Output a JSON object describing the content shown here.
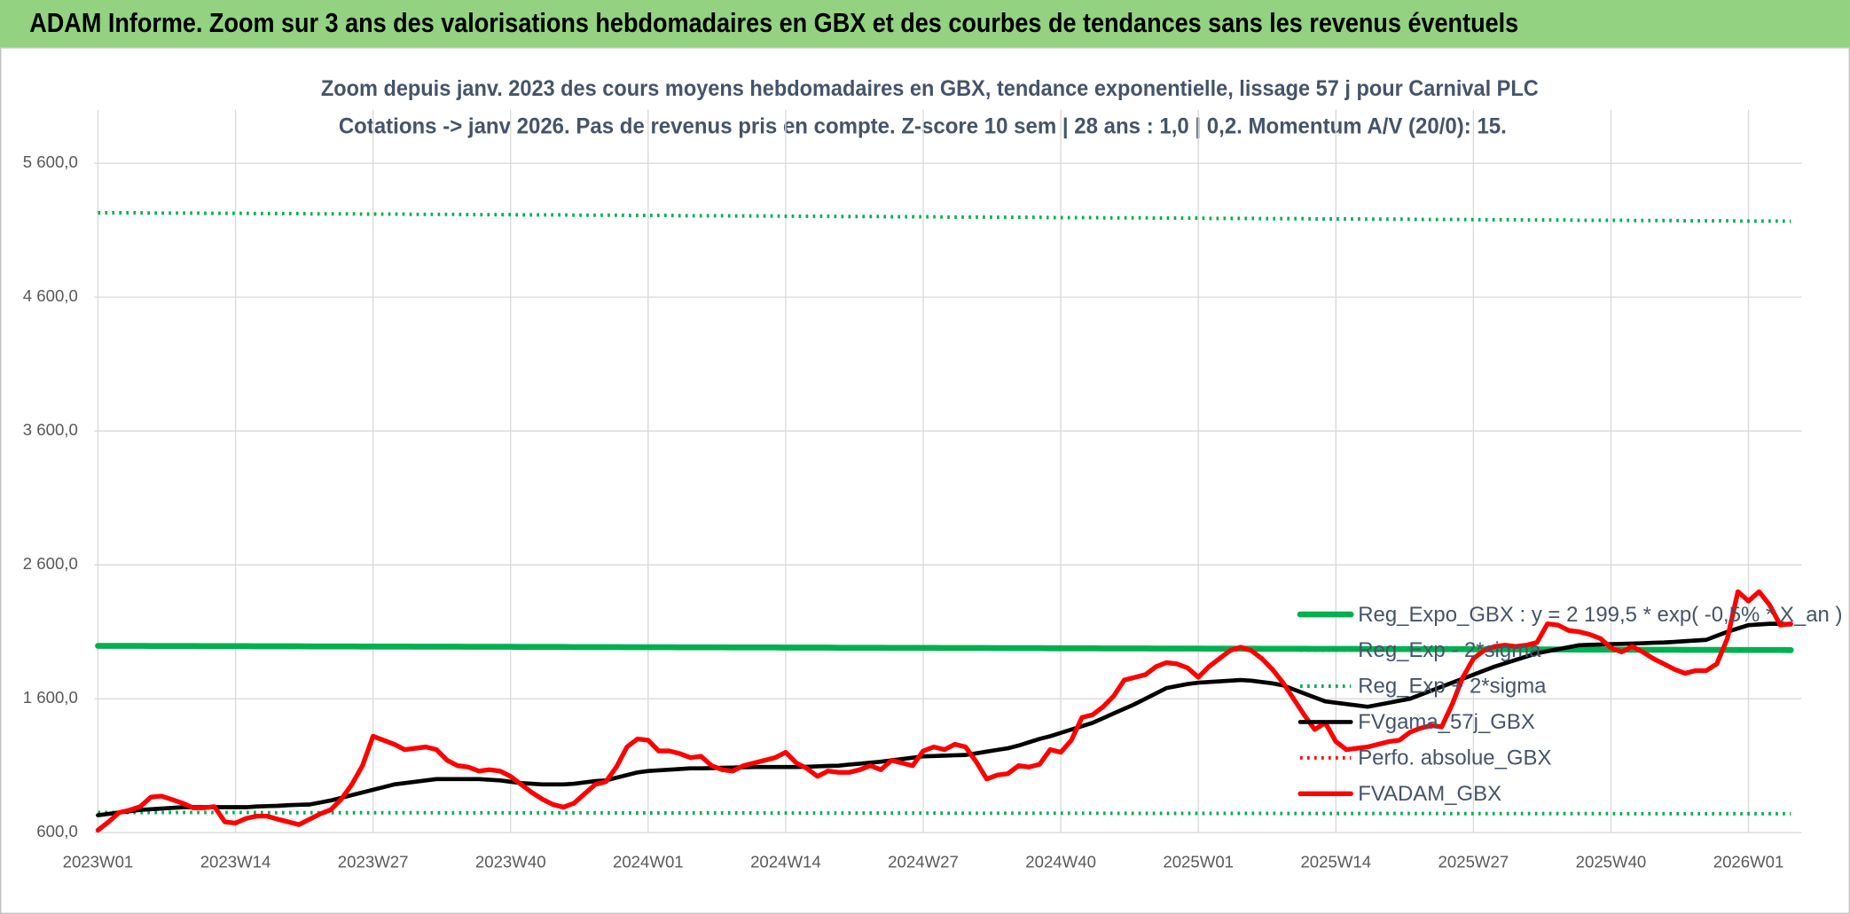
{
  "chart_data": {
    "type": "line",
    "title": "ADAM Informe. Zoom sur 3 ans des valorisations hebdomadaires en GBX et des courbes de tendances sans les revenus éventuels",
    "subtitle": [
      "Zoom depuis janv. 2023 des cours moyens hebdomadaires en GBX, tendance exponentielle, lissage 57 j pour Carnival PLC",
      "Cotations -> janv 2026. Pas de revenus pris en compte. Z-score 10 sem | 28 ans : 1,0 | 0,2. Momentum A/V (20/0): 15."
    ],
    "categories": [
      "2023W01",
      null,
      null,
      null,
      null,
      null,
      null,
      null,
      null,
      null,
      null,
      null,
      null,
      "2023W14",
      null,
      null,
      null,
      null,
      null,
      null,
      null,
      null,
      null,
      null,
      null,
      null,
      "2023W27",
      null,
      null,
      null,
      null,
      null,
      null,
      null,
      null,
      null,
      null,
      null,
      null,
      "2023W40",
      null,
      null,
      null,
      null,
      null,
      null,
      null,
      null,
      null,
      null,
      null,
      null,
      "2024W01",
      null,
      null,
      null,
      null,
      null,
      null,
      null,
      null,
      null,
      null,
      null,
      null,
      "2024W14",
      null,
      null,
      null,
      null,
      null,
      null,
      null,
      null,
      null,
      null,
      null,
      null,
      "2024W27",
      null,
      null,
      null,
      null,
      null,
      null,
      null,
      null,
      null,
      null,
      null,
      null,
      "2024W40",
      null,
      null,
      null,
      null,
      null,
      null,
      null,
      null,
      null,
      null,
      null,
      null,
      "2025W01",
      null,
      null,
      null,
      null,
      null,
      null,
      null,
      null,
      null,
      null,
      null,
      null,
      "2025W14",
      null,
      null,
      null,
      null,
      null,
      null,
      null,
      null,
      null,
      null,
      null,
      null,
      "2025W27",
      null,
      null,
      null,
      null,
      null,
      null,
      null,
      null,
      null,
      null,
      null,
      null,
      "2025W40",
      null,
      null,
      null,
      null,
      null,
      null,
      null,
      null,
      null,
      null,
      null,
      null,
      "2026W01",
      null,
      null,
      null,
      null
    ],
    "ylim": [
      600,
      6000
    ],
    "yticks": [
      {
        "value": 600,
        "label": "600,0"
      },
      {
        "value": 1600,
        "label": "1 600,0"
      },
      {
        "value": 2600,
        "label": "2 600,0"
      },
      {
        "value": 3600,
        "label": "3 600,0"
      },
      {
        "value": 4600,
        "label": "4 600,0"
      },
      {
        "value": 5600,
        "label": "5 600,0"
      }
    ],
    "grid": true,
    "legend": "right",
    "series": [
      {
        "name": "Reg_Expo_GBX : y = 2 199,5 * exp( -0,5% * X_an )",
        "color": "#00b050",
        "style": "solid",
        "width": 5,
        "values": [
          1995,
          1995,
          1995,
          1995,
          1995,
          1994,
          1994,
          1994,
          1994,
          1994,
          1993,
          1993,
          1993,
          1993,
          1993,
          1992,
          1992,
          1992,
          1992,
          1992,
          1991,
          1991,
          1991,
          1991,
          1991,
          1990,
          1990,
          1990,
          1990,
          1990,
          1989,
          1989,
          1989,
          1989,
          1989,
          1988,
          1988,
          1988,
          1988,
          1988,
          1987,
          1987,
          1987,
          1987,
          1987,
          1986,
          1986,
          1986,
          1986,
          1986,
          1985,
          1985,
          1985,
          1985,
          1985,
          1984,
          1984,
          1984,
          1984,
          1984,
          1983,
          1983,
          1983,
          1983,
          1983,
          1982,
          1982,
          1982,
          1982,
          1982,
          1981,
          1981,
          1981,
          1981,
          1981,
          1980,
          1980,
          1980,
          1980,
          1980,
          1979,
          1979,
          1979,
          1979,
          1979,
          1978,
          1978,
          1978,
          1978,
          1978,
          1977,
          1977,
          1977,
          1977,
          1977,
          1976,
          1976,
          1976,
          1976,
          1976,
          1975,
          1975,
          1975,
          1975,
          1975,
          1974,
          1974,
          1974,
          1974,
          1974,
          1973,
          1973,
          1973,
          1973,
          1973,
          1972,
          1972,
          1972,
          1972,
          1972,
          1971,
          1971,
          1971,
          1971,
          1971,
          1970,
          1970,
          1970,
          1970,
          1970,
          1969,
          1969,
          1969,
          1969,
          1969,
          1968,
          1968,
          1968,
          1968,
          1968,
          1967,
          1967,
          1967,
          1967,
          1967,
          1966,
          1966,
          1966,
          1966,
          1966,
          1965,
          1965,
          1965,
          1965,
          1965,
          1964,
          1964,
          1964,
          1964,
          1964,
          1963
        ]
      },
      {
        "name": "Reg_Exp - 2*sigma",
        "color": "#00b050",
        "style": "dotted",
        "width": 3,
        "values": [
          750,
          750,
          750,
          750,
          750,
          750,
          750,
          750,
          750,
          750,
          750,
          750,
          750,
          750,
          750,
          750,
          749,
          749,
          749,
          749,
          749,
          749,
          749,
          749,
          749,
          749,
          749,
          749,
          749,
          749,
          749,
          749,
          748,
          748,
          748,
          748,
          748,
          748,
          748,
          748,
          748,
          748,
          748,
          748,
          748,
          748,
          748,
          748,
          747,
          747,
          747,
          747,
          747,
          747,
          747,
          747,
          747,
          747,
          747,
          747,
          747,
          747,
          747,
          747,
          746,
          746,
          746,
          746,
          746,
          746,
          746,
          746,
          746,
          746,
          746,
          746,
          746,
          746,
          746,
          746,
          745,
          745,
          745,
          745,
          745,
          745,
          745,
          745,
          745,
          745,
          745,
          745,
          745,
          745,
          745,
          745,
          744,
          744,
          744,
          744,
          744,
          744,
          744,
          744,
          744,
          744,
          744,
          744,
          744,
          744,
          744,
          744,
          743,
          743,
          743,
          743,
          743,
          743,
          743,
          743,
          743,
          743,
          743,
          743,
          743,
          743,
          743,
          743,
          742,
          742,
          742,
          742,
          742,
          742,
          742,
          742,
          742,
          742,
          742,
          742,
          742,
          742,
          742,
          742,
          741,
          741,
          741,
          741,
          741,
          741,
          741,
          741,
          741,
          741,
          741,
          741,
          741,
          741,
          741,
          741,
          741
        ]
      },
      {
        "name": "Reg_Exp + 2*sigma",
        "color": "#00b050",
        "style": "dotted",
        "width": 3,
        "values": [
          5230,
          5230,
          5230,
          5230,
          5230,
          5228,
          5228,
          5228,
          5228,
          5228,
          5226,
          5226,
          5226,
          5226,
          5226,
          5224,
          5224,
          5224,
          5224,
          5224,
          5222,
          5222,
          5222,
          5222,
          5222,
          5220,
          5220,
          5220,
          5220,
          5220,
          5218,
          5218,
          5218,
          5218,
          5218,
          5216,
          5216,
          5216,
          5216,
          5216,
          5214,
          5214,
          5214,
          5214,
          5214,
          5212,
          5212,
          5212,
          5212,
          5212,
          5210,
          5210,
          5210,
          5210,
          5210,
          5208,
          5208,
          5208,
          5208,
          5208,
          5206,
          5206,
          5206,
          5206,
          5206,
          5204,
          5204,
          5204,
          5204,
          5204,
          5202,
          5202,
          5202,
          5202,
          5202,
          5200,
          5200,
          5200,
          5200,
          5200,
          5198,
          5198,
          5198,
          5198,
          5198,
          5196,
          5196,
          5196,
          5196,
          5196,
          5194,
          5194,
          5194,
          5194,
          5194,
          5192,
          5192,
          5192,
          5192,
          5192,
          5190,
          5190,
          5190,
          5190,
          5190,
          5188,
          5188,
          5188,
          5188,
          5188,
          5186,
          5186,
          5186,
          5186,
          5186,
          5184,
          5184,
          5184,
          5184,
          5184,
          5182,
          5182,
          5182,
          5182,
          5182,
          5180,
          5180,
          5180,
          5180,
          5180,
          5178,
          5178,
          5178,
          5178,
          5178,
          5176,
          5176,
          5176,
          5176,
          5176,
          5174,
          5174,
          5174,
          5174,
          5174,
          5172,
          5172,
          5172,
          5172,
          5172,
          5170,
          5170,
          5170,
          5170,
          5170,
          5168,
          5168,
          5168,
          5168,
          5168,
          5166
        ]
      },
      {
        "name": "FVgama_57j_GBX",
        "color": "#000000",
        "style": "solid",
        "width": 3.5,
        "values": [
          730,
          740,
          750,
          760,
          770,
          775,
          780,
          785,
          790,
          790,
          790,
          790,
          790,
          790,
          790,
          795,
          798,
          800,
          805,
          808,
          810,
          825,
          840,
          860,
          880,
          900,
          920,
          940,
          960,
          970,
          980,
          990,
          1000,
          1000,
          1000,
          1000,
          1000,
          995,
          990,
          980,
          970,
          965,
          960,
          960,
          960,
          965,
          975,
          985,
          990,
          1010,
          1030,
          1050,
          1060,
          1065,
          1070,
          1075,
          1080,
          1080,
          1082,
          1084,
          1086,
          1088,
          1090,
          1090,
          1090,
          1090,
          1090,
          1092,
          1095,
          1098,
          1100,
          1108,
          1115,
          1122,
          1130,
          1140,
          1150,
          1160,
          1170,
          1172,
          1175,
          1178,
          1180,
          1192,
          1205,
          1218,
          1230,
          1250,
          1275,
          1300,
          1320,
          1345,
          1370,
          1395,
          1420,
          1455,
          1490,
          1525,
          1560,
          1600,
          1640,
          1680,
          1695,
          1710,
          1720,
          1725,
          1730,
          1735,
          1740,
          1735,
          1725,
          1715,
          1700,
          1670,
          1640,
          1610,
          1580,
          1570,
          1560,
          1550,
          1540,
          1555,
          1570,
          1585,
          1600,
          1630,
          1660,
          1690,
          1720,
          1750,
          1780,
          1810,
          1840,
          1865,
          1890,
          1915,
          1940,
          1955,
          1970,
          1985,
          2000,
          2003,
          2005,
          2008,
          2010,
          2012,
          2015,
          2018,
          2020,
          2025,
          2030,
          2035,
          2040,
          2070,
          2100,
          2125,
          2150,
          2155,
          2160,
          2160,
          2155
        ]
      },
      {
        "name": "Perfo. absolue_GBX",
        "color": "#ff0000",
        "style": "dotted",
        "width": 3
      },
      {
        "name": "FVADAM_GBX",
        "color": "#ff0000",
        "style": "solid",
        "width": 4,
        "values": [
          618,
          680,
          750,
          768,
          794,
          865,
          873,
          847,
          820,
          785,
          785,
          794,
          680,
          671,
          706,
          723,
          723,
          700,
          680,
          660,
          700,
          740,
          770,
          850,
          960,
          1100,
          1320,
          1290,
          1260,
          1220,
          1230,
          1240,
          1220,
          1140,
          1100,
          1090,
          1060,
          1070,
          1060,
          1020,
          960,
          900,
          850,
          810,
          790,
          820,
          890,
          960,
          980,
          1090,
          1240,
          1300,
          1290,
          1210,
          1210,
          1190,
          1160,
          1170,
          1100,
          1070,
          1060,
          1100,
          1120,
          1140,
          1160,
          1200,
          1120,
          1080,
          1020,
          1060,
          1050,
          1050,
          1070,
          1100,
          1070,
          1140,
          1120,
          1100,
          1210,
          1240,
          1220,
          1260,
          1240,
          1130,
          1000,
          1030,
          1040,
          1100,
          1090,
          1110,
          1220,
          1200,
          1290,
          1460,
          1480,
          1540,
          1620,
          1740,
          1760,
          1780,
          1840,
          1870,
          1860,
          1830,
          1760,
          1840,
          1900,
          1960,
          1985,
          1960,
          1900,
          1820,
          1720,
          1600,
          1480,
          1370,
          1420,
          1280,
          1220,
          1230,
          1240,
          1260,
          1280,
          1290,
          1350,
          1380,
          1400,
          1390,
          1560,
          1760,
          1900,
          1960,
          1990,
          2000,
          1990,
          2000,
          2020,
          2160,
          2150,
          2110,
          2100,
          2080,
          2050,
          1980,
          1950,
          1990,
          1950,
          1900,
          1860,
          1820,
          1790,
          1810,
          1810,
          1860,
          2050,
          2400,
          2330,
          2400,
          2300,
          2150,
          2160
        ]
      }
    ]
  }
}
